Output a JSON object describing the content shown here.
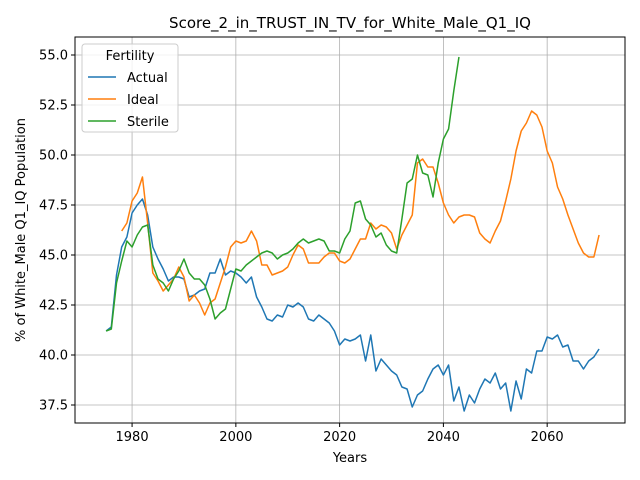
{
  "chart_data": {
    "type": "line",
    "title": "Score_2_in_TRUST_IN_TV_for_White_Male_Q1_IQ",
    "xlabel": "Years",
    "ylabel": "% of White_Male Q1_IQ Population",
    "xlim": [
      1969,
      2075
    ],
    "ylim": [
      36.6,
      55.9
    ],
    "xticks": [
      1980,
      2000,
      2020,
      2040,
      2060
    ],
    "yticks": [
      37.5,
      40.0,
      42.5,
      45.0,
      47.5,
      50.0,
      52.5,
      55.0
    ],
    "grid": true,
    "legend": {
      "title": "Fertility",
      "placement": "upper-left"
    },
    "series": [
      {
        "name": "Actual",
        "color": "#1f77b4",
        "x": [
          1975,
          1976,
          1977,
          1978,
          1979,
          1980,
          1981,
          1982,
          1983,
          1984,
          1985,
          1986,
          1987,
          1988,
          1989,
          1990,
          1991,
          1992,
          1993,
          1994,
          1995,
          1996,
          1997,
          1998,
          1999,
          2000,
          2001,
          2002,
          2003,
          2004,
          2005,
          2006,
          2007,
          2008,
          2009,
          2010,
          2011,
          2012,
          2013,
          2014,
          2015,
          2016,
          2017,
          2018,
          2019,
          2020,
          2021,
          2022,
          2023,
          2024,
          2025,
          2026,
          2027,
          2028,
          2029,
          2030,
          2031,
          2032,
          2033,
          2034,
          2035,
          2036,
          2037,
          2038,
          2039,
          2040,
          2041,
          2042,
          2043,
          2044,
          2045,
          2046,
          2047,
          2048,
          2049,
          2050,
          2051,
          2052,
          2053,
          2054,
          2055,
          2056,
          2057,
          2058,
          2059,
          2060,
          2061,
          2062,
          2063,
          2064,
          2065,
          2066,
          2067,
          2068,
          2069,
          2070
        ],
        "y": [
          41.2,
          41.4,
          44.0,
          45.4,
          45.9,
          47.1,
          47.5,
          47.8,
          47.0,
          45.4,
          44.8,
          44.3,
          43.7,
          43.9,
          43.9,
          43.8,
          42.9,
          43.0,
          43.2,
          43.3,
          44.1,
          44.1,
          44.8,
          44.0,
          44.2,
          44.1,
          43.9,
          43.6,
          43.9,
          42.9,
          42.4,
          41.8,
          41.7,
          42.0,
          41.9,
          42.5,
          42.4,
          42.6,
          42.4,
          41.8,
          41.7,
          42.0,
          41.8,
          41.6,
          41.2,
          40.5,
          40.8,
          40.7,
          40.8,
          41.0,
          39.7,
          41.0,
          39.2,
          39.8,
          39.5,
          39.2,
          39.0,
          38.4,
          38.3,
          37.4,
          38.0,
          38.2,
          38.8,
          39.3,
          39.5,
          39.0,
          39.5,
          37.7,
          38.4,
          37.2,
          38.0,
          37.6,
          38.3,
          38.8,
          38.6,
          39.1,
          38.3,
          38.6,
          37.2,
          38.7,
          37.8,
          39.3,
          39.1,
          40.2,
          40.2,
          40.9,
          40.8,
          41.0,
          40.4,
          40.5,
          39.7,
          39.7,
          39.3,
          39.7,
          39.9,
          40.3
        ]
      },
      {
        "name": "Ideal",
        "color": "#ff7f0e",
        "x": [
          1978,
          1979,
          1980,
          1981,
          1982,
          1983,
          1984,
          1985,
          1986,
          1987,
          1988,
          1989,
          1990,
          1991,
          1992,
          1993,
          1994,
          1995,
          1996,
          1997,
          1998,
          1999,
          2000,
          2001,
          2002,
          2003,
          2004,
          2005,
          2006,
          2007,
          2008,
          2009,
          2010,
          2011,
          2012,
          2013,
          2014,
          2015,
          2016,
          2017,
          2018,
          2019,
          2020,
          2021,
          2022,
          2023,
          2024,
          2025,
          2026,
          2027,
          2028,
          2029,
          2030,
          2031,
          2032,
          2033,
          2034,
          2035,
          2036,
          2037,
          2038,
          2039,
          2040,
          2041,
          2042,
          2043,
          2044,
          2045,
          2046,
          2047,
          2048,
          2049,
          2050,
          2051,
          2052,
          2053,
          2054,
          2055,
          2056,
          2057,
          2058,
          2059,
          2060,
          2061,
          2062,
          2063,
          2064,
          2065,
          2066,
          2067,
          2068,
          2069,
          2070
        ],
        "y": [
          46.2,
          46.6,
          47.7,
          48.1,
          48.9,
          46.6,
          44.1,
          43.7,
          43.2,
          43.5,
          43.8,
          44.4,
          43.9,
          42.7,
          43.0,
          42.6,
          42.0,
          42.6,
          42.8,
          43.6,
          44.4,
          45.4,
          45.7,
          45.6,
          45.7,
          46.2,
          45.7,
          44.5,
          44.5,
          44.0,
          44.1,
          44.2,
          44.4,
          45.0,
          45.5,
          45.3,
          44.6,
          44.6,
          44.6,
          44.9,
          45.1,
          45.1,
          44.7,
          44.6,
          44.8,
          45.3,
          45.8,
          45.8,
          46.6,
          46.3,
          46.5,
          46.4,
          46.1,
          45.3,
          46.0,
          46.5,
          47.0,
          49.6,
          49.8,
          49.4,
          49.4,
          48.6,
          47.6,
          47.0,
          46.6,
          46.9,
          47.0,
          47.0,
          46.9,
          46.1,
          45.8,
          45.6,
          46.2,
          46.7,
          47.7,
          48.8,
          50.2,
          51.2,
          51.6,
          52.2,
          52.0,
          51.4,
          50.2,
          49.6,
          48.4,
          47.8,
          47.0,
          46.3,
          45.6,
          45.1,
          44.9,
          44.9,
          46.0
        ]
      },
      {
        "name": "Sterile",
        "color": "#2ca02c",
        "x": [
          1975,
          1976,
          1977,
          1978,
          1979,
          1980,
          1981,
          1982,
          1983,
          1984,
          1985,
          1986,
          1987,
          1988,
          1989,
          1990,
          1991,
          1992,
          1993,
          1994,
          1995,
          1996,
          1997,
          1998,
          1999,
          2000,
          2001,
          2002,
          2003,
          2004,
          2005,
          2006,
          2007,
          2008,
          2009,
          2010,
          2011,
          2012,
          2013,
          2014,
          2015,
          2016,
          2017,
          2018,
          2019,
          2020,
          2021,
          2022,
          2023,
          2024,
          2025,
          2026,
          2027,
          2028,
          2029,
          2030,
          2031,
          2032,
          2033,
          2034,
          2035,
          2036,
          2037,
          2038,
          2039,
          2040,
          2041,
          2042,
          2043
        ],
        "y": [
          41.2,
          41.3,
          43.6,
          44.7,
          45.7,
          45.4,
          46.0,
          46.4,
          46.5,
          44.5,
          43.8,
          43.6,
          43.2,
          43.8,
          44.2,
          44.8,
          44.1,
          43.8,
          43.8,
          43.5,
          42.8,
          41.8,
          42.1,
          42.3,
          43.3,
          44.3,
          44.2,
          44.5,
          44.7,
          44.9,
          45.1,
          45.2,
          45.1,
          44.8,
          45.0,
          45.1,
          45.3,
          45.6,
          45.8,
          45.6,
          45.7,
          45.8,
          45.7,
          45.2,
          45.2,
          45.1,
          45.8,
          46.2,
          47.6,
          47.7,
          46.8,
          46.5,
          45.9,
          46.1,
          45.5,
          45.2,
          45.1,
          46.8,
          48.6,
          48.8,
          50.0,
          49.1,
          49.0,
          47.9,
          49.6,
          50.8,
          51.3,
          53.2,
          54.9
        ]
      }
    ]
  }
}
